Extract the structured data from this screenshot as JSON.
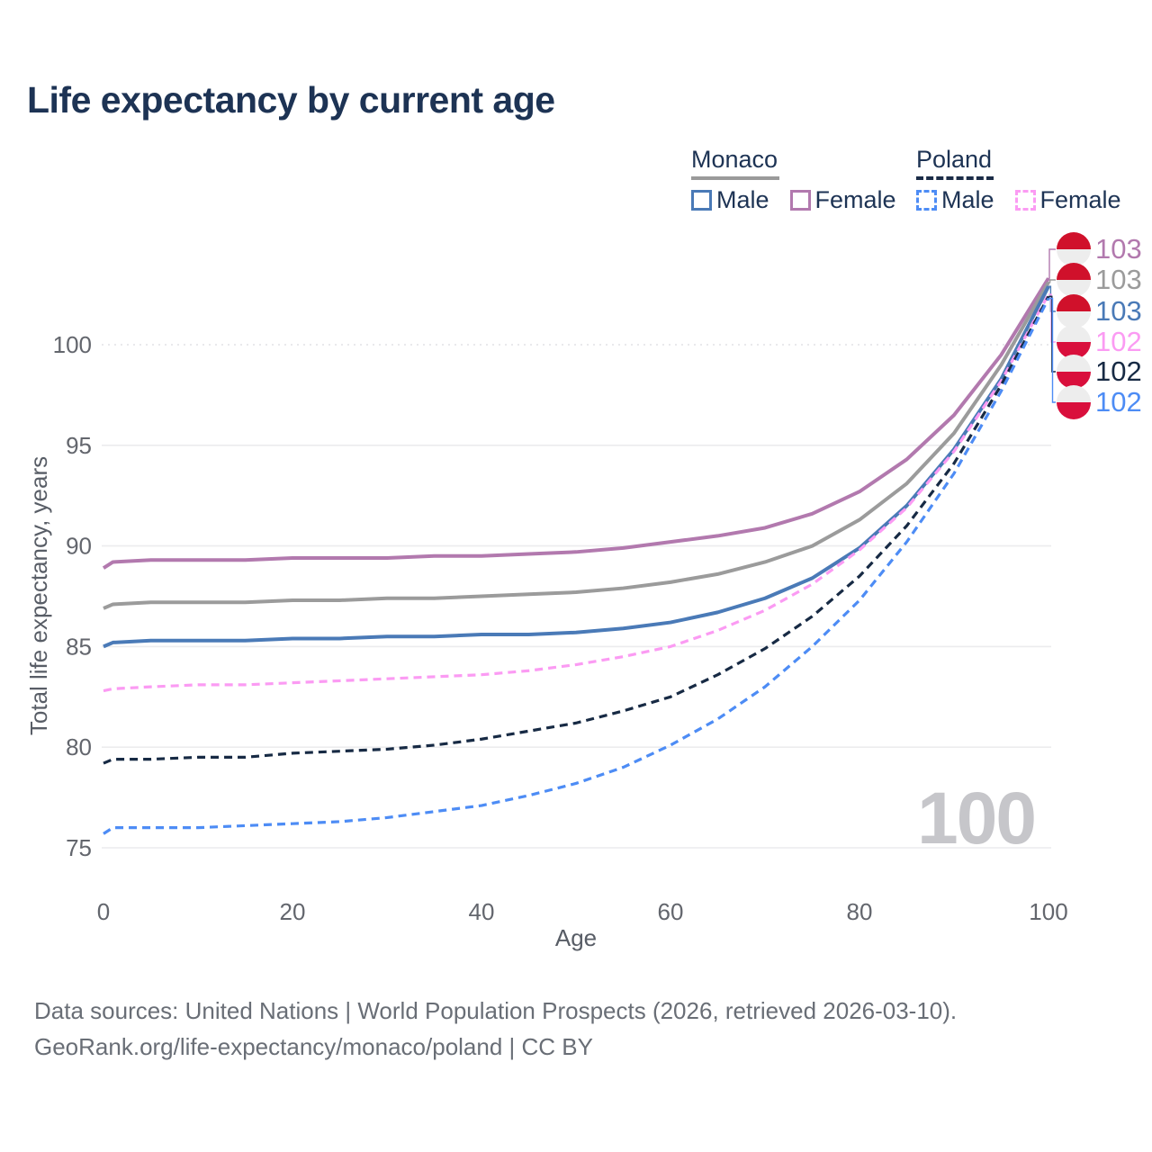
{
  "title": "Life expectancy by current age",
  "legend": {
    "groups": [
      {
        "label": "Monaco",
        "line_style": "solid",
        "underline_color": "#9a9a9a",
        "items": [
          {
            "label": "Male",
            "color": "#4a7ab7"
          },
          {
            "label": "Female",
            "color": "#b279ae"
          }
        ]
      },
      {
        "label": "Poland",
        "line_style": "dashed",
        "underline_color": "#1b2c47",
        "items": [
          {
            "label": "Male",
            "color": "#4d8cf5"
          },
          {
            "label": "Female",
            "color": "#fb9bf3"
          }
        ]
      }
    ]
  },
  "chart_data": {
    "type": "line",
    "title": "Life expectancy by current age",
    "xlabel": "Age",
    "ylabel": "Total life expectancy, years",
    "x_ticks": [
      0,
      20,
      40,
      60,
      80,
      100
    ],
    "y_ticks": [
      75,
      80,
      85,
      90,
      95,
      100
    ],
    "xlim": [
      0,
      100
    ],
    "ylim": [
      75,
      104
    ],
    "grid": "horizontal",
    "watermark": "100",
    "flag_colors": {
      "monaco_red": "#d0112b",
      "poland_red": "#d90f3c",
      "flag_white": "#ededed"
    },
    "x": [
      0,
      1,
      5,
      10,
      15,
      20,
      25,
      30,
      35,
      40,
      45,
      50,
      55,
      60,
      65,
      70,
      75,
      80,
      85,
      90,
      95,
      100
    ],
    "series": [
      {
        "name": "Monaco Female",
        "country": "Monaco",
        "sex": "Female",
        "line_style": "solid",
        "color": "#b279ae",
        "end_label": "103",
        "flag": "monaco",
        "values": [
          88.9,
          89.2,
          89.3,
          89.3,
          89.3,
          89.4,
          89.4,
          89.4,
          89.5,
          89.5,
          89.6,
          89.7,
          89.9,
          90.2,
          90.5,
          90.9,
          91.6,
          92.7,
          94.3,
          96.5,
          99.5,
          103.3
        ]
      },
      {
        "name": "Monaco Total",
        "country": "Monaco",
        "sex": "Both",
        "line_style": "solid",
        "color": "#9b9b9b",
        "end_label": "103",
        "flag": "monaco",
        "values": [
          86.9,
          87.1,
          87.2,
          87.2,
          87.2,
          87.3,
          87.3,
          87.4,
          87.4,
          87.5,
          87.6,
          87.7,
          87.9,
          88.2,
          88.6,
          89.2,
          90.0,
          91.3,
          93.1,
          95.6,
          99.0,
          103.1
        ]
      },
      {
        "name": "Monaco Male",
        "country": "Monaco",
        "sex": "Male",
        "line_style": "solid",
        "color": "#4a7ab7",
        "end_label": "103",
        "flag": "monaco",
        "values": [
          85.0,
          85.2,
          85.3,
          85.3,
          85.3,
          85.4,
          85.4,
          85.5,
          85.5,
          85.6,
          85.6,
          85.7,
          85.9,
          86.2,
          86.7,
          87.4,
          88.4,
          89.9,
          92.0,
          94.8,
          98.3,
          102.9
        ]
      },
      {
        "name": "Poland Female",
        "country": "Poland",
        "sex": "Female",
        "line_style": "dashed",
        "color": "#fb9bf3",
        "end_label": "102",
        "flag": "poland",
        "values": [
          82.8,
          82.9,
          83.0,
          83.1,
          83.1,
          83.2,
          83.3,
          83.4,
          83.5,
          83.6,
          83.8,
          84.1,
          84.5,
          85.0,
          85.8,
          86.8,
          88.1,
          89.8,
          91.9,
          94.7,
          98.2,
          102.5
        ]
      },
      {
        "name": "Poland Total",
        "country": "Poland",
        "sex": "Both",
        "line_style": "dashed",
        "color": "#172a44",
        "end_label": "102",
        "flag": "poland",
        "values": [
          79.2,
          79.4,
          79.4,
          79.5,
          79.5,
          79.7,
          79.8,
          79.9,
          80.1,
          80.4,
          80.8,
          81.2,
          81.8,
          82.5,
          83.6,
          84.9,
          86.5,
          88.5,
          91.0,
          94.1,
          98.0,
          102.4
        ]
      },
      {
        "name": "Poland Male",
        "country": "Poland",
        "sex": "Male",
        "line_style": "dashed",
        "color": "#4d8cf5",
        "end_label": "102",
        "flag": "poland",
        "values": [
          75.7,
          76.0,
          76.0,
          76.0,
          76.1,
          76.2,
          76.3,
          76.5,
          76.8,
          77.1,
          77.6,
          78.2,
          79.0,
          80.1,
          81.4,
          83.0,
          85.0,
          87.3,
          90.2,
          93.6,
          97.7,
          102.3
        ]
      }
    ]
  },
  "footer": {
    "line1": "Data sources: United Nations | World Population Prospects (2026, retrieved 2026-03-10).",
    "line2": "GeoRank.org/life-expectancy/monaco/poland | CC BY"
  }
}
